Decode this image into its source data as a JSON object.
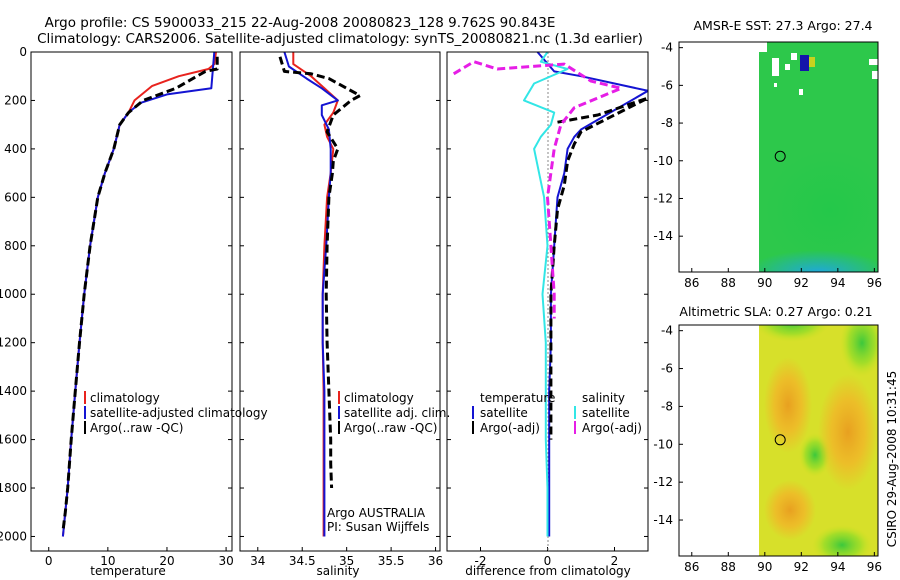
{
  "header": {
    "line1": "Argo profile: CS 5900033_215 22-Aug-2008 20080823_128 9.762S 90.843E",
    "line2": "Climatology: CARS2006. Satellite-adjusted climatology: synTS_20080821.nc (1.3d earlier)"
  },
  "side_label": "CSIRO 29-Aug-2008 10:31:45",
  "chart_data": [
    {
      "type": "line",
      "id": "temperature",
      "xlabel": "temperature",
      "ylabel": "",
      "xlim": [
        -3,
        31
      ],
      "ylim": [
        0,
        2060
      ],
      "y_inverted": true,
      "xticks": [
        0,
        10,
        20,
        30
      ],
      "yticks": [
        0,
        200,
        400,
        600,
        800,
        1000,
        1200,
        1400,
        1600,
        1800,
        2000
      ],
      "legend": [
        "climatology",
        "satellite-adjusted climatology",
        "Argo(..raw -QC)"
      ],
      "series": [
        {
          "name": "climatology",
          "color": "#e8231e",
          "dashed": false,
          "x": [
            28.3,
            28.0,
            27.0,
            22.0,
            17.5,
            14.5,
            13.5,
            12.0,
            11.0,
            9.5,
            8.3,
            7.0,
            6.0,
            5.2,
            4.5,
            3.8,
            3.2,
            2.8,
            2.4
          ],
          "y": [
            0,
            50,
            70,
            100,
            140,
            200,
            250,
            300,
            400,
            500,
            600,
            800,
            1000,
            1200,
            1400,
            1600,
            1800,
            1900,
            2000
          ]
        },
        {
          "name": "satellite-adjusted climatology",
          "color": "#1414d2",
          "dashed": false,
          "x": [
            28.0,
            27.8,
            27.5,
            20.0,
            15.5,
            13.5,
            12.0,
            11.0,
            9.5,
            8.3,
            7.0,
            6.0,
            5.2,
            4.5,
            3.8,
            3.2,
            2.8,
            2.4
          ],
          "y": [
            0,
            60,
            150,
            175,
            210,
            250,
            300,
            400,
            500,
            600,
            800,
            1000,
            1200,
            1400,
            1600,
            1800,
            1900,
            2000
          ]
        },
        {
          "name": "Argo(..raw -QC)",
          "color": "#000000",
          "dashed": true,
          "x": [
            28.5,
            28.5,
            26.5,
            21.5,
            16.0,
            13.5,
            12.0,
            11.0,
            9.5,
            8.3,
            7.0,
            6.0,
            5.2,
            4.5,
            3.8,
            3.2,
            2.8,
            2.4
          ],
          "y": [
            20,
            70,
            80,
            150,
            200,
            250,
            300,
            400,
            500,
            600,
            800,
            1000,
            1200,
            1400,
            1600,
            1800,
            1900,
            1980
          ]
        }
      ]
    },
    {
      "type": "line",
      "id": "salinity",
      "xlabel": "salinity",
      "ylabel": "",
      "xlim": [
        33.8,
        36.05
      ],
      "ylim": [
        0,
        2060
      ],
      "y_inverted": true,
      "xticks": [
        34,
        34.5,
        35,
        35.5,
        36
      ],
      "legend": [
        "climatology",
        "satellite adj. clim.",
        "Argo(..raw -QC)"
      ],
      "annotation": [
        "Argo AUSTRALIA",
        "PI: Susan Wijffels"
      ],
      "series": [
        {
          "name": "climatology",
          "color": "#e8231e",
          "dashed": false,
          "x": [
            34.4,
            34.4,
            34.6,
            34.75,
            34.9,
            34.85,
            34.75,
            34.78,
            34.85,
            34.82,
            34.78,
            34.75,
            34.73,
            34.73,
            34.74,
            34.74,
            34.74,
            34.74,
            34.74
          ],
          "y": [
            0,
            50,
            100,
            150,
            200,
            250,
            300,
            350,
            400,
            500,
            600,
            800,
            1000,
            1200,
            1400,
            1600,
            1800,
            1900,
            2000
          ]
        },
        {
          "name": "satellite adj. clim.",
          "color": "#1414d2",
          "dashed": false,
          "x": [
            34.3,
            34.35,
            34.55,
            34.72,
            34.9,
            34.72,
            34.72,
            34.8,
            34.82,
            34.82,
            34.8,
            34.77,
            34.73,
            34.73,
            34.75,
            34.75,
            34.75,
            34.75,
            34.75,
            34.75
          ],
          "y": [
            0,
            60,
            110,
            150,
            200,
            220,
            260,
            320,
            400,
            500,
            600,
            800,
            1000,
            1200,
            1400,
            1600,
            1800,
            1900,
            1950,
            2000
          ]
        },
        {
          "name": "Argo(..raw -QC)",
          "color": "#000000",
          "dashed": true,
          "x": [
            34.25,
            34.3,
            34.6,
            34.8,
            35.15,
            35.05,
            34.85,
            34.78,
            34.9,
            34.85,
            34.84,
            34.8,
            34.78,
            34.77,
            34.78,
            34.8,
            34.82,
            34.82,
            34.83
          ],
          "y": [
            20,
            80,
            90,
            110,
            180,
            200,
            260,
            330,
            400,
            450,
            500,
            600,
            800,
            1000,
            1200,
            1400,
            1600,
            1700,
            1800
          ]
        }
      ]
    },
    {
      "type": "line",
      "id": "difference",
      "xlabel": "difference from climatology",
      "ylabel": "",
      "xlim": [
        -3,
        3
      ],
      "ylim": [
        0,
        2060
      ],
      "y_inverted": true,
      "xticks": [
        -2,
        0,
        2
      ],
      "legend_headers": [
        "temperature",
        "salinity"
      ],
      "legend": [
        [
          "satellite",
          "Argo(-adj)"
        ],
        [
          "satellite",
          "Argo(-adj)"
        ]
      ],
      "series": [
        {
          "name": "temperature satellite",
          "color": "#1414d2",
          "dashed": false,
          "x": [
            -0.3,
            0.2,
            1.0,
            3.0,
            1.5,
            1.0,
            0.8,
            0.6,
            0.5,
            0.3,
            0.2,
            0.1,
            0.1,
            0.05,
            0.05,
            0.05,
            0.05
          ],
          "y": [
            0,
            80,
            100,
            160,
            280,
            320,
            350,
            400,
            500,
            600,
            800,
            1000,
            1200,
            1400,
            1600,
            1800,
            2000
          ]
        },
        {
          "name": "temperature Argo(-adj)",
          "color": "#000000",
          "dashed": true,
          "x": [
            0.3,
            1.5,
            3.0,
            1.0,
            0.8,
            0.6,
            0.5,
            0.3,
            0.2,
            0.1,
            0.1,
            0.1,
            0.1
          ],
          "y": [
            290,
            260,
            190,
            330,
            380,
            450,
            550,
            650,
            800,
            1000,
            1200,
            1400,
            1600
          ]
        },
        {
          "name": "salinity satellite",
          "color": "#32e6e6",
          "dashed": false,
          "x": [
            0.0,
            -0.2,
            0.6,
            -0.4,
            -0.7,
            0.2,
            0.1,
            -0.2,
            -0.4,
            -0.1,
            0.0,
            -0.15,
            -0.05,
            -0.05,
            -0.05,
            0.0,
            0.0
          ],
          "y": [
            0,
            40,
            70,
            130,
            200,
            250,
            300,
            350,
            400,
            600,
            800,
            1000,
            1200,
            1400,
            1600,
            1800,
            2000
          ]
        },
        {
          "name": "salinity Argo(-adj)",
          "color": "#e61ee6",
          "dashed": true,
          "x": [
            -2.8,
            -2.2,
            -1.5,
            0.5,
            1.3,
            2.2,
            0.8,
            0.4,
            0.2,
            0.0,
            0.1,
            0.2,
            0.2
          ],
          "y": [
            90,
            40,
            70,
            50,
            120,
            150,
            230,
            300,
            400,
            600,
            800,
            1000,
            1100
          ]
        }
      ]
    },
    {
      "type": "heatmap",
      "id": "sst",
      "title": "AMSR-E SST: 27.3 Argo: 27.4",
      "xlim": [
        85.3,
        96.2
      ],
      "ylim": [
        -15.9,
        -3.7
      ],
      "xticks": [
        86,
        88,
        90,
        92,
        94,
        96
      ],
      "yticks": [
        -4,
        -6,
        -8,
        -10,
        -12,
        -14
      ],
      "data_xlim": [
        90.0,
        96.2
      ],
      "marker": {
        "lon": 90.843,
        "lat": -9.762
      }
    },
    {
      "type": "heatmap",
      "id": "sla",
      "title": "Altimetric SLA: 0.27 Argo: 0.21",
      "xlim": [
        85.3,
        96.2
      ],
      "ylim": [
        -15.9,
        -3.7
      ],
      "xticks": [
        86,
        88,
        90,
        92,
        94,
        96
      ],
      "yticks": [
        -4,
        -6,
        -8,
        -10,
        -12,
        -14
      ],
      "data_xlim": [
        90.0,
        96.2
      ],
      "marker": {
        "lon": 90.843,
        "lat": -9.762
      }
    }
  ]
}
